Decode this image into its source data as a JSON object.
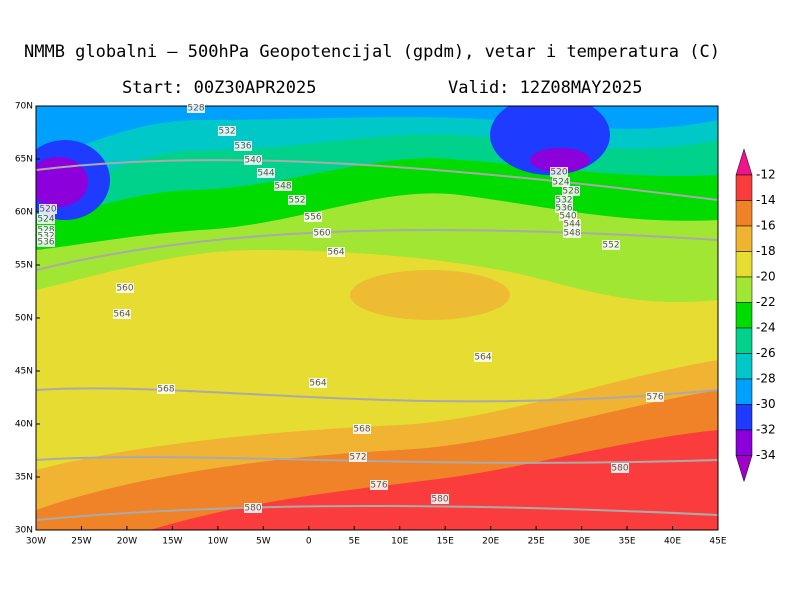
{
  "header": {
    "title": "NMMB globalni – 500hPa Geopotencijal (gpdm), vetar i temperatura (C)",
    "start": "Start: 00Z30APR2025",
    "valid": "Valid: 12Z08MAY2025"
  },
  "map": {
    "lat_labels": [
      "30N",
      "35N",
      "40N",
      "45N",
      "50N",
      "55N",
      "60N",
      "65N",
      "70N"
    ],
    "lon_labels": [
      "30W",
      "25W",
      "20W",
      "15W",
      "10W",
      "5W",
      "0",
      "5E",
      "10E",
      "15E",
      "20E",
      "25E",
      "30E",
      "35E",
      "40E",
      "45E"
    ],
    "colorbar": {
      "labels": [
        "-12",
        "-14",
        "-16",
        "-18",
        "-20",
        "-22",
        "-24",
        "-26",
        "-28",
        "-30",
        "-32",
        "-34"
      ],
      "colors": [
        "#f0148c",
        "#fa3c3c",
        "#f08228",
        "#f0b432",
        "#e6dc32",
        "#a0e632",
        "#00dc00",
        "#00d28c",
        "#00c8c8",
        "#00a0ff",
        "#1e3cff",
        "#8c00dc",
        "#a000c8"
      ]
    },
    "contour_labels": [
      "528",
      "532",
      "536",
      "540",
      "544",
      "548",
      "552",
      "556",
      "560",
      "564",
      "560",
      "564",
      "568",
      "564",
      "568",
      "572",
      "576",
      "580",
      "580",
      "564",
      "576",
      "580",
      "552",
      "520",
      "524",
      "528",
      "532",
      "536",
      "520",
      "524",
      "528",
      "532",
      "536",
      "540",
      "544",
      "548"
    ]
  }
}
